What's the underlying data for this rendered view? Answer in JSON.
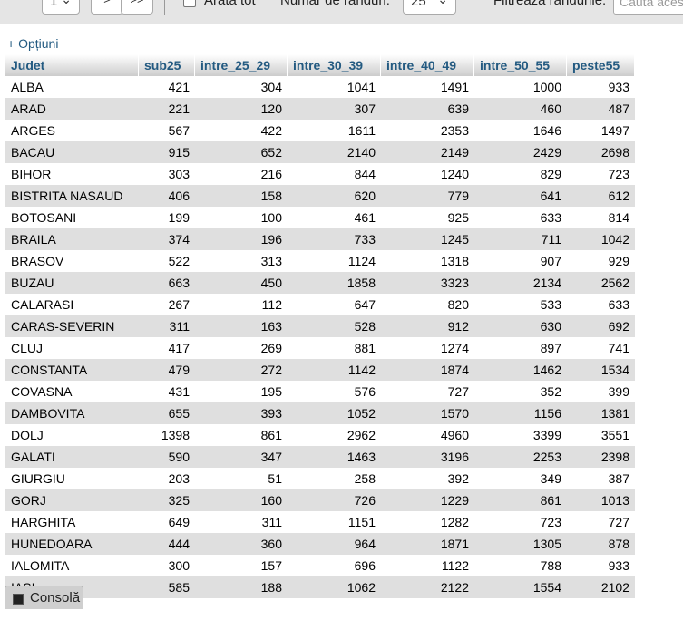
{
  "toolbar": {
    "page_select_value": "1",
    "next_label": ">",
    "last_label": ">>",
    "show_all_label": "Arată tot",
    "rows_label": "Număr de rânduri:",
    "rows_select_value": "25",
    "filter_label": "Filtrează rândurile:",
    "filter_placeholder": "Caută acest"
  },
  "options_link": "+ Opțiuni",
  "table": {
    "columns": [
      "Judet",
      "sub25",
      "intre_25_29",
      "intre_30_39",
      "intre_40_49",
      "intre_50_55",
      "peste55"
    ],
    "rows": [
      [
        "ALBA",
        "421",
        "304",
        "1041",
        "1491",
        "1000",
        "933"
      ],
      [
        "ARAD",
        "221",
        "120",
        "307",
        "639",
        "460",
        "487"
      ],
      [
        "ARGES",
        "567",
        "422",
        "1611",
        "2353",
        "1646",
        "1497"
      ],
      [
        "BACAU",
        "915",
        "652",
        "2140",
        "2149",
        "2429",
        "2698"
      ],
      [
        "BIHOR",
        "303",
        "216",
        "844",
        "1240",
        "829",
        "723"
      ],
      [
        "BISTRITA NASAUD",
        "406",
        "158",
        "620",
        "779",
        "641",
        "612"
      ],
      [
        "BOTOSANI",
        "199",
        "100",
        "461",
        "925",
        "633",
        "814"
      ],
      [
        "BRAILA",
        "374",
        "196",
        "733",
        "1245",
        "711",
        "1042"
      ],
      [
        "BRASOV",
        "522",
        "313",
        "1124",
        "1318",
        "907",
        "929"
      ],
      [
        "BUZAU",
        "663",
        "450",
        "1858",
        "3323",
        "2134",
        "2562"
      ],
      [
        "CALARASI",
        "267",
        "112",
        "647",
        "820",
        "533",
        "633"
      ],
      [
        "CARAS-SEVERIN",
        "311",
        "163",
        "528",
        "912",
        "630",
        "692"
      ],
      [
        "CLUJ",
        "417",
        "269",
        "881",
        "1274",
        "897",
        "741"
      ],
      [
        "CONSTANTA",
        "479",
        "272",
        "1142",
        "1874",
        "1462",
        "1534"
      ],
      [
        "COVASNA",
        "431",
        "195",
        "576",
        "727",
        "352",
        "399"
      ],
      [
        "DAMBOVITA",
        "655",
        "393",
        "1052",
        "1570",
        "1156",
        "1381"
      ],
      [
        "DOLJ",
        "1398",
        "861",
        "2962",
        "4960",
        "3399",
        "3551"
      ],
      [
        "GALATI",
        "590",
        "347",
        "1463",
        "3196",
        "2253",
        "2398"
      ],
      [
        "GIURGIU",
        "203",
        "51",
        "258",
        "392",
        "349",
        "387"
      ],
      [
        "GORJ",
        "325",
        "160",
        "726",
        "1229",
        "861",
        "1013"
      ],
      [
        "HARGHITA",
        "649",
        "311",
        "1151",
        "1282",
        "723",
        "727"
      ],
      [
        "HUNEDOARA",
        "444",
        "360",
        "964",
        "1871",
        "1305",
        "878"
      ],
      [
        "IALOMITA",
        "300",
        "157",
        "696",
        "1122",
        "788",
        "933"
      ],
      [
        "IASI",
        "585",
        "188",
        "1062",
        "2122",
        "1554",
        "2102"
      ],
      [
        "",
        "",
        "",
        "",
        "",
        "",
        ""
      ]
    ]
  },
  "console_label": "Consolă"
}
